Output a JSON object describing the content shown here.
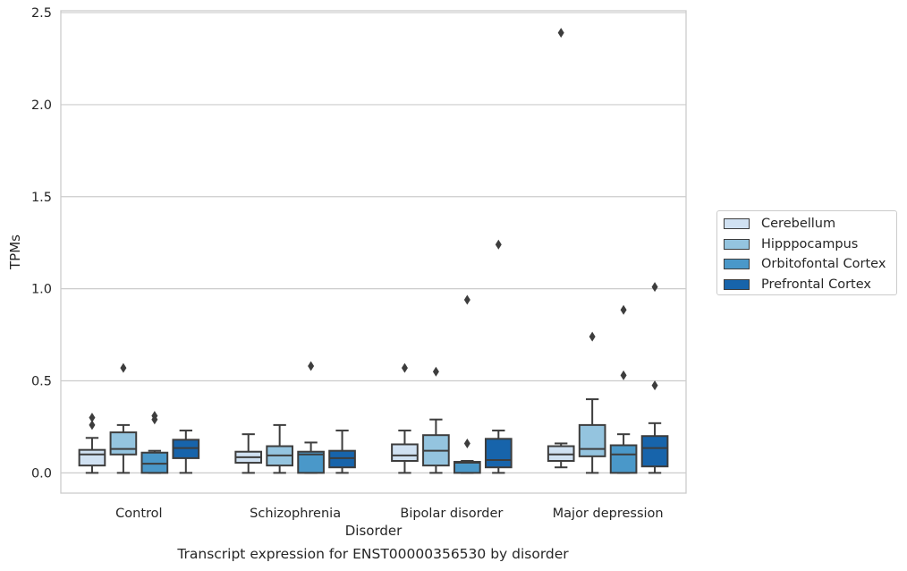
{
  "caption": "Transcript expression for ENST00000356530 by disorder",
  "chart_data": {
    "type": "box",
    "title": "",
    "xlabel": "Disorder",
    "ylabel": "TPMs",
    "ylim": [
      -0.11,
      2.51
    ],
    "yticks": [
      "0.0",
      "0.5",
      "1.0",
      "1.5",
      "2.0",
      "2.5"
    ],
    "ytick_values": [
      0,
      0.5,
      1,
      1.5,
      2,
      2.5
    ],
    "grid": "horizontal",
    "legend_position": "right",
    "categories": [
      "Control",
      "Schizophrenia",
      "Bipolar disorder",
      "Major depression"
    ],
    "series": [
      {
        "name": "Cerebellum",
        "color": "#d0e1f2",
        "boxes": [
          {
            "whislo": 0.0,
            "q1": 0.04,
            "med": 0.1,
            "q3": 0.125,
            "whishi": 0.19,
            "fliers": [
              0.26,
              0.3
            ]
          },
          {
            "whislo": 0.0,
            "q1": 0.055,
            "med": 0.085,
            "q3": 0.115,
            "whishi": 0.21,
            "fliers": []
          },
          {
            "whislo": 0.0,
            "q1": 0.065,
            "med": 0.095,
            "q3": 0.155,
            "whishi": 0.23,
            "fliers": [
              0.57
            ]
          },
          {
            "whislo": 0.03,
            "q1": 0.065,
            "med": 0.1,
            "q3": 0.145,
            "whishi": 0.16,
            "fliers": [
              2.39
            ]
          }
        ]
      },
      {
        "name": "Hipppocampus",
        "color": "#94c4df",
        "boxes": [
          {
            "whislo": 0.0,
            "q1": 0.1,
            "med": 0.13,
            "q3": 0.22,
            "whishi": 0.26,
            "fliers": [
              0.57
            ]
          },
          {
            "whislo": 0.0,
            "q1": 0.04,
            "med": 0.095,
            "q3": 0.145,
            "whishi": 0.26,
            "fliers": []
          },
          {
            "whislo": 0.0,
            "q1": 0.04,
            "med": 0.12,
            "q3": 0.205,
            "whishi": 0.29,
            "fliers": [
              0.55
            ]
          },
          {
            "whislo": 0.0,
            "q1": 0.09,
            "med": 0.13,
            "q3": 0.26,
            "whishi": 0.4,
            "fliers": [
              0.74
            ]
          }
        ]
      },
      {
        "name": "Orbitofontal Cortex",
        "color": "#4a98c9",
        "boxes": [
          {
            "whislo": 0.0,
            "q1": 0.0,
            "med": 0.05,
            "q3": 0.11,
            "whishi": 0.12,
            "fliers": [
              0.29,
              0.31
            ]
          },
          {
            "whislo": 0.0,
            "q1": 0.0,
            "med": 0.1,
            "q3": 0.115,
            "whishi": 0.165,
            "fliers": [
              0.58
            ]
          },
          {
            "whislo": 0.0,
            "q1": 0.0,
            "med": 0.055,
            "q3": 0.06,
            "whishi": 0.065,
            "fliers": [
              0.16,
              0.94
            ]
          },
          {
            "whislo": 0.0,
            "q1": 0.0,
            "med": 0.1,
            "q3": 0.15,
            "whishi": 0.21,
            "fliers": [
              0.53,
              0.885
            ]
          }
        ]
      },
      {
        "name": "Prefrontal Cortex",
        "color": "#1764ab",
        "boxes": [
          {
            "whislo": 0.0,
            "q1": 0.08,
            "med": 0.135,
            "q3": 0.18,
            "whishi": 0.23,
            "fliers": []
          },
          {
            "whislo": 0.0,
            "q1": 0.03,
            "med": 0.08,
            "q3": 0.12,
            "whishi": 0.23,
            "fliers": []
          },
          {
            "whislo": 0.0,
            "q1": 0.03,
            "med": 0.07,
            "q3": 0.185,
            "whishi": 0.23,
            "fliers": [
              1.24
            ]
          },
          {
            "whislo": 0.0,
            "q1": 0.035,
            "med": 0.135,
            "q3": 0.2,
            "whishi": 0.27,
            "fliers": [
              0.475,
              1.01
            ]
          }
        ]
      }
    ]
  }
}
